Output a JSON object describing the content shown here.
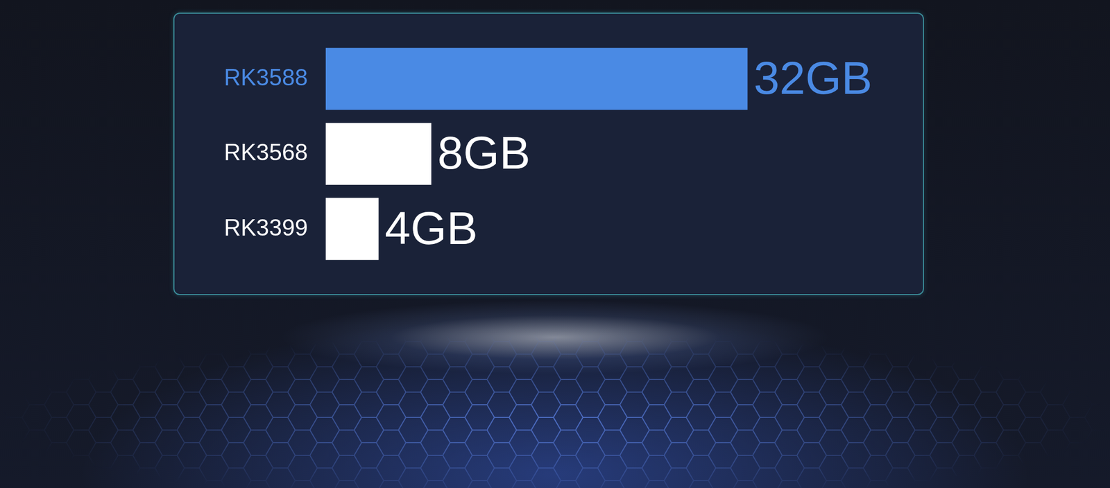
{
  "chart_data": {
    "type": "bar",
    "orientation": "horizontal",
    "categories": [
      "RK3588",
      "RK3568",
      "RK3399"
    ],
    "values": [
      32,
      8,
      4
    ],
    "value_labels": [
      "32GB",
      "8GB",
      "4GB"
    ],
    "colors": [
      "#4a8ae4",
      "#ffffff",
      "#ffffff"
    ],
    "xlim": [
      0,
      40
    ],
    "xticks": [
      0,
      10,
      20,
      30,
      40
    ],
    "grid": false,
    "tick_labels": "y",
    "data_labels": true
  }
}
